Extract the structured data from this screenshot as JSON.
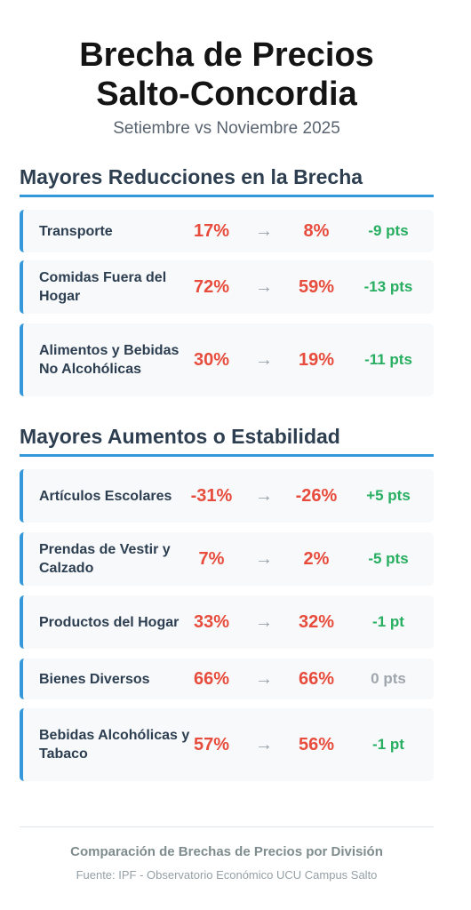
{
  "header": {
    "title_line1": "Brecha de Precios",
    "title_line2": "Salto-Concordia",
    "subtitle": "Setiembre vs Noviembre 2025"
  },
  "arrow": "→",
  "sections": [
    {
      "title": "Mayores Reducciones en la Brecha",
      "items": [
        {
          "label": "Transporte",
          "from": "17%",
          "to": "8%",
          "change": "-9 pts"
        },
        {
          "label": "Comidas Fuera del Hogar",
          "from": "72%",
          "to": "59%",
          "change": "-13 pts"
        },
        {
          "label": "Alimentos y Bebidas No Alcohólicas",
          "from": "30%",
          "to": "19%",
          "change": "-11 pts"
        }
      ]
    },
    {
      "title": "Mayores Aumentos o Estabilidad",
      "items": [
        {
          "label": "Artículos Escolares",
          "from": "-31%",
          "to": "-26%",
          "change": "+5 pts"
        },
        {
          "label": "Prendas de Vestir y Calzado",
          "from": "7%",
          "to": "2%",
          "change": "-5 pts"
        },
        {
          "label": "Productos del Hogar",
          "from": "33%",
          "to": "32%",
          "change": "-1 pt"
        },
        {
          "label": "Bienes Diversos",
          "from": "66%",
          "to": "66%",
          "change": "0 pts"
        },
        {
          "label": "Bebidas Alcohólicas y Tabaco",
          "from": "57%",
          "to": "56%",
          "change": "-1 pt"
        }
      ]
    }
  ],
  "footer": {
    "title": "Comparación de Brechas de Precios por División",
    "source": "Fuente: IPF - Observatorio Económico UCU Campus Salto"
  },
  "colors": {
    "accent": "#3498db",
    "value": "#e74c3c",
    "decrease": "#27ae60",
    "neutral": "#a0a6ad"
  }
}
